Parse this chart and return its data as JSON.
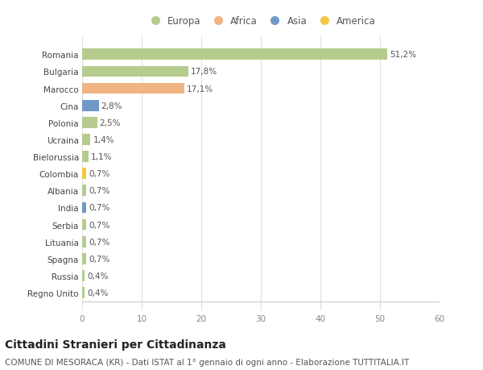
{
  "categories": [
    "Regno Unito",
    "Russia",
    "Spagna",
    "Lituania",
    "Serbia",
    "India",
    "Albania",
    "Colombia",
    "Bielorussia",
    "Ucraina",
    "Polonia",
    "Cina",
    "Marocco",
    "Bulgaria",
    "Romania"
  ],
  "values": [
    0.4,
    0.4,
    0.7,
    0.7,
    0.7,
    0.7,
    0.7,
    0.7,
    1.1,
    1.4,
    2.5,
    2.8,
    17.1,
    17.8,
    51.2
  ],
  "labels": [
    "0,4%",
    "0,4%",
    "0,7%",
    "0,7%",
    "0,7%",
    "0,7%",
    "0,7%",
    "0,7%",
    "1,1%",
    "1,4%",
    "2,5%",
    "2,8%",
    "17,1%",
    "17,8%",
    "51,2%"
  ],
  "colors": [
    "#b5cc8e",
    "#b5cc8e",
    "#b5cc8e",
    "#b5cc8e",
    "#b5cc8e",
    "#7199c8",
    "#b5cc8e",
    "#f5c842",
    "#b5cc8e",
    "#b5cc8e",
    "#b5cc8e",
    "#7199c8",
    "#f0b482",
    "#b5cc8e",
    "#b5cc8e"
  ],
  "legend_labels": [
    "Europa",
    "Africa",
    "Asia",
    "America"
  ],
  "legend_colors": [
    "#b5cc8e",
    "#f0b482",
    "#7199c8",
    "#f5c842"
  ],
  "title": "Cittadini Stranieri per Cittadinanza",
  "subtitle": "COMUNE DI MESORACA (KR) - Dati ISTAT al 1° gennaio di ogni anno - Elaborazione TUTTITALIA.IT",
  "xlim": [
    0,
    60
  ],
  "xticks": [
    0,
    10,
    20,
    30,
    40,
    50,
    60
  ],
  "background_color": "#ffffff",
  "bar_height": 0.65,
  "title_fontsize": 10,
  "subtitle_fontsize": 7.5,
  "label_fontsize": 7.5,
  "tick_fontsize": 7.5,
  "legend_fontsize": 8.5
}
